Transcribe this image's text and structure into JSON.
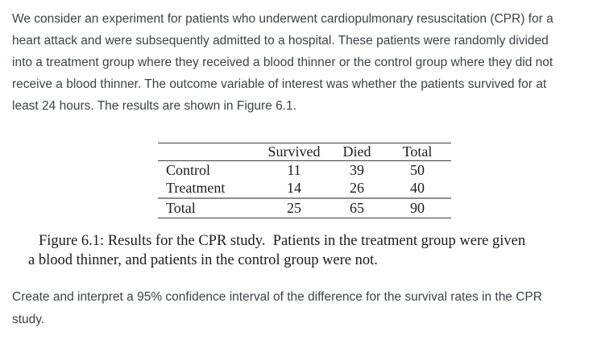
{
  "intro": {
    "lines": [
      "We consider an experiment for patients who underwent cardiopulmonary resuscitation (CPR) for a",
      "heart attack and were subsequently admitted to a hospital. These patients were randomly divided",
      "into a treatment group where they received a blood thinner or the control group where they did not",
      "receive a blood thinner. The outcome variable of interest was whether the patients survived for at",
      "least 24 hours. The results are shown in Figure 6.1."
    ]
  },
  "table": {
    "corner": "",
    "headers": [
      "Survived",
      "Died",
      "Total"
    ],
    "rows": [
      {
        "label": "Control",
        "survived": "11",
        "died": "39",
        "total": "50"
      },
      {
        "label": "Treatment",
        "survived": "14",
        "died": "26",
        "total": "40"
      },
      {
        "label": "Total",
        "survived": "25",
        "died": "65",
        "total": "90"
      }
    ]
  },
  "caption": {
    "lines": [
      "Figure 6.1: Results for the CPR study.  Patients in the treatment group were given",
      "a blood thinner, and patients in the control group were not."
    ]
  },
  "question": {
    "lines": [
      "Create and interpret a 95% confidence interval of the difference for the survival rates in the CPR",
      "study."
    ]
  },
  "colors": {
    "background": "#ffffff",
    "sans_text": "#3e4247",
    "serif_text": "#1c1c1c",
    "rule_dark": "#3f3f3f",
    "rule_gray": "#8e8e8e"
  }
}
